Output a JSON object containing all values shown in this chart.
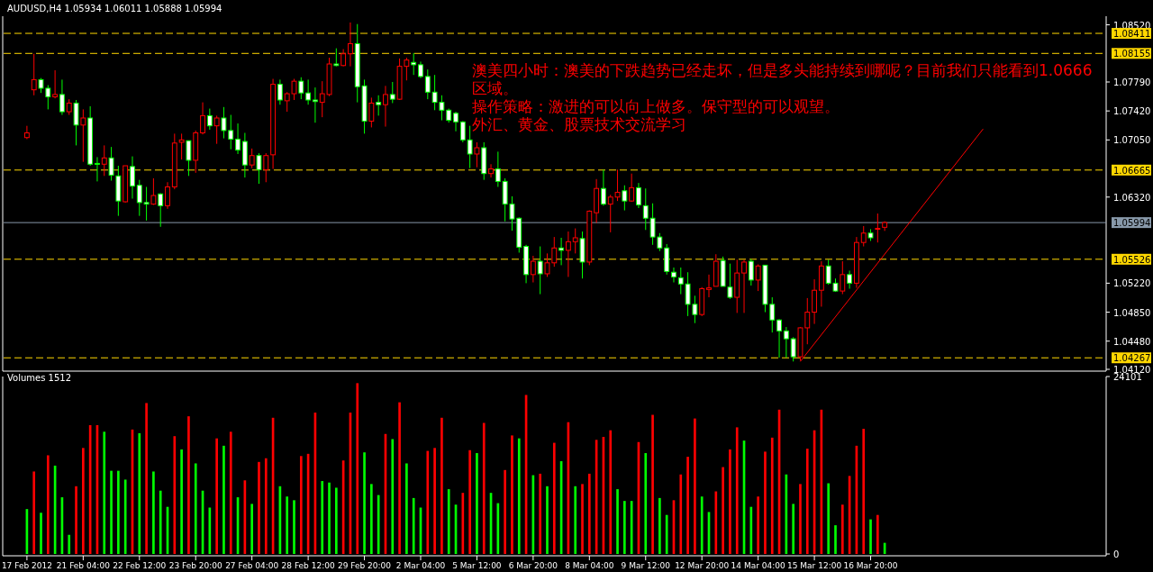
{
  "chart_data": [
    {
      "type": "candlestick",
      "title": "AUDUSD,H4 1.05934 1.06011 1.05888 1.05994",
      "tick_labels": "y",
      "categories": [
        null,
        null,
        null,
        null,
        null,
        null,
        null,
        null,
        null,
        null,
        null,
        null,
        null,
        null,
        null,
        null,
        null,
        null,
        null,
        null,
        null,
        null,
        null,
        null,
        null,
        null,
        null,
        null,
        null,
        null,
        null,
        null,
        null,
        null,
        null,
        null,
        null,
        null,
        null,
        null,
        null,
        null,
        null,
        null,
        null,
        null,
        null,
        null,
        null,
        null,
        null,
        null,
        null,
        null,
        null,
        null,
        null,
        null,
        null,
        null,
        null,
        null,
        null,
        null,
        null,
        null,
        null,
        null,
        null,
        null,
        null,
        null,
        null,
        null,
        null,
        null,
        null,
        null,
        null,
        null,
        null,
        null,
        null,
        null,
        null,
        null,
        null,
        null,
        null,
        null,
        null,
        null,
        null,
        null,
        null,
        null,
        null,
        null,
        null,
        null,
        null,
        null,
        null,
        null,
        null,
        null,
        null,
        null,
        null,
        null,
        null,
        null,
        null,
        null,
        null,
        null,
        null,
        null,
        null,
        null,
        null,
        null,
        null,
        null,
        null,
        null,
        null,
        null,
        null,
        null,
        null,
        null,
        null,
        null,
        null,
        null,
        null,
        null,
        null,
        null,
        null,
        null,
        null,
        null,
        null,
        null,
        null,
        null,
        null,
        null,
        null,
        null,
        null,
        null
      ],
      "ohlc": [
        [
          1.0708,
          1.0723,
          1.0706,
          1.0714
        ],
        [
          1.0769,
          1.0815,
          1.0762,
          1.0782
        ],
        [
          1.0782,
          1.0784,
          1.0765,
          1.0771
        ],
        [
          1.0771,
          1.0775,
          1.0744,
          1.076
        ],
        [
          1.076,
          1.0794,
          1.0758,
          1.0763
        ],
        [
          1.0763,
          1.0782,
          1.0737,
          1.0741
        ],
        [
          1.0741,
          1.0757,
          1.0737,
          1.0752
        ],
        [
          1.0752,
          1.0756,
          1.0698,
          1.0724
        ],
        [
          1.0724,
          1.0744,
          1.0677,
          1.0733
        ],
        [
          1.0733,
          1.0748,
          1.0672,
          1.0674
        ],
        [
          1.0675,
          1.0683,
          1.0652,
          1.0674
        ],
        [
          1.0674,
          1.0698,
          1.0659,
          1.0682
        ],
        [
          1.0682,
          1.0696,
          1.0653,
          1.066
        ],
        [
          1.0659,
          1.0672,
          1.0608,
          1.0627
        ],
        [
          1.0626,
          1.0672,
          1.0625,
          1.0672
        ],
        [
          1.0671,
          1.0684,
          1.063,
          1.0646
        ],
        [
          1.0647,
          1.0654,
          1.0608,
          1.0625
        ],
        [
          1.0625,
          1.0645,
          1.0602,
          1.0623
        ],
        [
          1.0623,
          1.0656,
          1.0622,
          1.0634
        ],
        [
          1.0636,
          1.0637,
          1.0594,
          1.0621
        ],
        [
          1.0621,
          1.0651,
          1.0617,
          1.0645
        ],
        [
          1.0645,
          1.0713,
          1.0642,
          1.0701
        ],
        [
          1.0702,
          1.0713,
          1.068,
          1.0705
        ],
        [
          1.0704,
          1.0704,
          1.0659,
          1.0679
        ],
        [
          1.0679,
          1.0717,
          1.0663,
          1.0714
        ],
        [
          1.0714,
          1.0753,
          1.0712,
          1.0736
        ],
        [
          1.0736,
          1.0745,
          1.0718,
          1.0723
        ],
        [
          1.0723,
          1.0736,
          1.07,
          1.0733
        ],
        [
          1.0733,
          1.0747,
          1.0707,
          1.0717
        ],
        [
          1.0717,
          1.0737,
          1.0693,
          1.0706
        ],
        [
          1.0706,
          1.0726,
          1.0687,
          1.0692
        ],
        [
          1.0703,
          1.0714,
          1.0657,
          1.0673
        ],
        [
          1.0673,
          1.0694,
          1.0669,
          1.0685
        ],
        [
          1.0685,
          1.0688,
          1.0649,
          1.0667
        ],
        [
          1.0667,
          1.0688,
          1.0651,
          1.0685
        ],
        [
          1.0686,
          1.0783,
          1.0668,
          1.0776
        ],
        [
          1.0776,
          1.0782,
          1.075,
          1.0756
        ],
        [
          1.0755,
          1.0766,
          1.0741,
          1.0764
        ],
        [
          1.0764,
          1.0783,
          1.0756,
          1.078
        ],
        [
          1.078,
          1.0785,
          1.0757,
          1.0765
        ],
        [
          1.0765,
          1.0782,
          1.075,
          1.0756
        ],
        [
          1.0756,
          1.0772,
          1.0727,
          1.0754
        ],
        [
          1.0753,
          1.078,
          1.0734,
          1.0764
        ],
        [
          1.0763,
          1.081,
          1.0761,
          1.0802
        ],
        [
          1.0802,
          1.0822,
          1.0799,
          1.08
        ],
        [
          1.08,
          1.0821,
          1.0799,
          1.0815
        ],
        [
          1.0815,
          1.0855,
          1.0799,
          1.0828
        ],
        [
          1.0828,
          1.0853,
          1.0753,
          1.0773
        ],
        [
          1.0774,
          1.0782,
          1.0713,
          1.0729
        ],
        [
          1.0729,
          1.0759,
          1.0721,
          1.0752
        ],
        [
          1.0753,
          1.0762,
          1.0736,
          1.075
        ],
        [
          1.075,
          1.0774,
          1.0722,
          1.0763
        ],
        [
          1.0763,
          1.0779,
          1.0752,
          1.0757
        ],
        [
          1.0757,
          1.0809,
          1.0756,
          1.0799
        ],
        [
          1.0799,
          1.081,
          1.0781,
          1.0807
        ],
        [
          1.0804,
          1.0816,
          1.0788,
          1.0801
        ],
        [
          1.0801,
          1.0805,
          1.0784,
          1.0786
        ],
        [
          1.0786,
          1.0795,
          1.0757,
          1.0766
        ],
        [
          1.0766,
          1.0788,
          1.0743,
          1.0753
        ],
        [
          1.0753,
          1.0762,
          1.073,
          1.0743
        ],
        [
          1.0743,
          1.0745,
          1.0727,
          1.073
        ],
        [
          1.0739,
          1.0741,
          1.0716,
          1.0728
        ],
        [
          1.0728,
          1.0729,
          1.0702,
          1.0705
        ],
        [
          1.0705,
          1.0723,
          1.0669,
          1.0687
        ],
        [
          1.0687,
          1.0702,
          1.067,
          1.0695
        ],
        [
          1.0695,
          1.0702,
          1.0654,
          1.0662
        ],
        [
          1.0662,
          1.0674,
          1.0657,
          1.0668
        ],
        [
          1.0668,
          1.069,
          1.0645,
          1.0652
        ],
        [
          1.0652,
          1.0656,
          1.0601,
          1.0623
        ],
        [
          1.0623,
          1.0633,
          1.0589,
          1.0604
        ],
        [
          1.0605,
          1.0606,
          1.0561,
          1.0568
        ],
        [
          1.0569,
          1.0571,
          1.0522,
          1.0533
        ],
        [
          1.0533,
          1.0557,
          1.0523,
          1.055
        ],
        [
          1.055,
          1.0569,
          1.0508,
          1.0534
        ],
        [
          1.0534,
          1.056,
          1.053,
          1.0548
        ],
        [
          1.0548,
          1.0581,
          1.0543,
          1.0567
        ],
        [
          1.0567,
          1.058,
          1.0545,
          1.0564
        ],
        [
          1.0564,
          1.0588,
          1.053,
          1.0575
        ],
        [
          1.0575,
          1.0592,
          1.056,
          1.058
        ],
        [
          1.0579,
          1.0588,
          1.0528,
          1.0549
        ],
        [
          1.0549,
          1.0615,
          1.0545,
          1.0614
        ],
        [
          1.0612,
          1.0655,
          1.0599,
          1.0643
        ],
        [
          1.0643,
          1.0667,
          1.0621,
          1.0623
        ],
        [
          1.0623,
          1.0635,
          1.0587,
          1.0632
        ],
        [
          1.0632,
          1.0667,
          1.0627,
          1.0638
        ],
        [
          1.064,
          1.0647,
          1.0615,
          1.0627
        ],
        [
          1.0627,
          1.0662,
          1.0626,
          1.0644
        ],
        [
          1.0644,
          1.065,
          1.0618,
          1.0622
        ],
        [
          1.0621,
          1.0643,
          1.059,
          1.0605
        ],
        [
          1.0605,
          1.0624,
          1.0571,
          1.0581
        ],
        [
          1.0581,
          1.0586,
          1.0563,
          1.0567
        ],
        [
          1.0567,
          1.0572,
          1.0533,
          1.0537
        ],
        [
          1.0536,
          1.0542,
          1.0523,
          1.053
        ],
        [
          1.0529,
          1.0542,
          1.0508,
          1.0521
        ],
        [
          1.0521,
          1.0536,
          1.048,
          1.0495
        ],
        [
          1.0495,
          1.0506,
          1.0471,
          1.0482
        ],
        [
          1.0482,
          1.0517,
          1.048,
          1.0515
        ],
        [
          1.0514,
          1.0533,
          1.0504,
          1.0516
        ],
        [
          1.0518,
          1.0559,
          1.0518,
          1.055
        ],
        [
          1.0551,
          1.0556,
          1.0518,
          1.0518
        ],
        [
          1.0517,
          1.0547,
          1.0502,
          1.0504
        ],
        [
          1.0504,
          1.0552,
          1.0484,
          1.0535
        ],
        [
          1.0535,
          1.0552,
          1.0484,
          1.0549
        ],
        [
          1.055,
          1.0553,
          1.0519,
          1.0526
        ],
        [
          1.0526,
          1.0546,
          1.0512,
          1.0544
        ],
        [
          1.0545,
          1.0545,
          1.0485,
          1.0495
        ],
        [
          1.0495,
          1.0504,
          1.0459,
          1.0475
        ],
        [
          1.0475,
          1.0476,
          1.0427,
          1.0461
        ],
        [
          1.0461,
          1.0466,
          1.0427,
          1.0451
        ],
        [
          1.0451,
          1.0453,
          1.0422,
          1.0428
        ],
        [
          1.0428,
          1.0466,
          1.0423,
          1.0465
        ],
        [
          1.0465,
          1.0503,
          1.0444,
          1.0485
        ],
        [
          1.0485,
          1.0527,
          1.047,
          1.0513
        ],
        [
          1.0513,
          1.055,
          1.0492,
          1.0544
        ],
        [
          1.0544,
          1.0552,
          1.052,
          1.0522
        ],
        [
          1.0522,
          1.0528,
          1.0511,
          1.0512
        ],
        [
          1.0512,
          1.055,
          1.0508,
          1.0533
        ],
        [
          1.0533,
          1.0538,
          1.0515,
          1.0522
        ],
        [
          1.0522,
          1.0581,
          1.0516,
          1.0574
        ],
        [
          1.0574,
          1.0595,
          1.0569,
          1.0586
        ],
        [
          1.0586,
          1.0591,
          1.0576,
          1.058
        ],
        [
          1.0591,
          1.0611,
          1.0574,
          1.0592
        ],
        [
          1.05934,
          1.06011,
          1.05888,
          1.05994
        ],
        null,
        null,
        null,
        null,
        null,
        null,
        null,
        null,
        null,
        null,
        null,
        null,
        null,
        null,
        null,
        null,
        null,
        null,
        null,
        null,
        null,
        null,
        null,
        null,
        null,
        null,
        null,
        null,
        null,
        null,
        null
      ],
      "colors": [
        "#ff0000",
        "#ff0000",
        "#00ff00",
        "#00ff00",
        "#ff0000",
        "#00ff00",
        "#ff0000",
        "#00ff00",
        "#ff0000",
        "#00ff00",
        "#00ff00",
        "#ff0000",
        "#00ff00",
        "#00ff00",
        "#ff0000",
        "#00ff00",
        "#00ff00",
        "#00ff00",
        "#ff0000",
        "#00ff00",
        "#ff0000",
        "#ff0000",
        "#ff0000",
        "#00ff00",
        "#ff0000",
        "#ff0000",
        "#00ff00",
        "#ff0000",
        "#00ff00",
        "#00ff00",
        "#00ff00",
        "#00ff00",
        "#ff0000",
        "#00ff00",
        "#ff0000",
        "#ff0000",
        "#00ff00",
        "#ff0000",
        "#ff0000",
        "#00ff00",
        "#00ff00",
        "#00ff00",
        "#ff0000",
        "#ff0000",
        "#00ff00",
        "#ff0000",
        "#ff0000",
        "#00ff00",
        "#00ff00",
        "#ff0000",
        "#00ff00",
        "#ff0000",
        "#00ff00",
        "#ff0000",
        "#ff0000",
        "#00ff00",
        "#00ff00",
        "#00ff00",
        "#00ff00",
        "#00ff00",
        "#00ff00",
        "#00ff00",
        "#00ff00",
        "#00ff00",
        "#ff0000",
        "#00ff00",
        "#ff0000",
        "#00ff00",
        "#00ff00",
        "#00ff00",
        "#00ff00",
        "#00ff00",
        "#ff0000",
        "#00ff00",
        "#ff0000",
        "#ff0000",
        "#00ff00",
        "#ff0000",
        "#ff0000",
        "#00ff00",
        "#ff0000",
        "#ff0000",
        "#00ff00",
        "#ff0000",
        "#ff0000",
        "#00ff00",
        "#ff0000",
        "#00ff00",
        "#00ff00",
        "#00ff00",
        "#00ff00",
        "#00ff00",
        "#00ff00",
        "#00ff00",
        "#00ff00",
        "#00ff00",
        "#ff0000",
        "#ff0000",
        "#ff0000",
        "#00ff00",
        "#00ff00",
        "#ff0000",
        "#ff0000",
        "#00ff00",
        "#ff0000",
        "#00ff00",
        "#00ff00",
        "#00ff00",
        "#00ff00",
        "#00ff00",
        "#ff0000",
        "#ff0000",
        "#ff0000",
        "#ff0000",
        "#00ff00",
        "#00ff00",
        "#ff0000",
        "#00ff00",
        "#ff0000",
        "#ff0000",
        "#00ff00",
        "#ff0000",
        "#ff0000",
        null,
        null,
        null,
        null,
        null,
        null,
        null,
        null,
        null,
        null,
        null,
        null,
        null,
        null,
        null,
        null,
        null,
        null,
        null,
        null,
        null,
        null,
        null,
        null,
        null,
        null,
        null,
        null,
        null,
        null,
        null
      ],
      "ylim": [
        1.0412,
        1.0863
      ],
      "yticks": [
        {
          "value": 1.0852,
          "label": "1.08520"
        },
        {
          "value": 1.0779,
          "label": "1.07790"
        },
        {
          "value": 1.0742,
          "label": "1.07420"
        },
        {
          "value": 1.0705,
          "label": "1.07050"
        },
        {
          "value": 1.0632,
          "label": "1.06320"
        },
        {
          "value": 1.0522,
          "label": "1.05220"
        },
        {
          "value": 1.0485,
          "label": "1.04850"
        },
        {
          "value": 1.0448,
          "label": "1.04480"
        },
        {
          "value": 1.0412,
          "label": "1.04120"
        }
      ],
      "ref_lines": [
        {
          "axis": "y",
          "value": 1.08411,
          "label": "1.08411",
          "color": "#ffd700",
          "line_style": "dashed"
        },
        {
          "axis": "y",
          "value": 1.08155,
          "label": "1.08155",
          "color": "#ffd700",
          "line_style": "dashed"
        },
        {
          "axis": "y",
          "value": 1.06665,
          "label": "1.06665",
          "color": "#ffd700",
          "line_style": "dashed"
        },
        {
          "axis": "y",
          "value": 1.05994,
          "label": "1.05994",
          "color": "#8899aa",
          "line_style": "solid"
        },
        {
          "axis": "y",
          "value": 1.05526,
          "label": "1.05526",
          "color": "#ffd700",
          "line_style": "dashed"
        },
        {
          "axis": "y",
          "value": 1.04267,
          "label": "1.04267",
          "color": "#ffd700",
          "line_style": "dashed"
        }
      ],
      "annotations": [
        "澳美四小时：澳美的下跌趋势已经走坏，但是多头能持续到哪呢？目前我们只能看到1.0666区域。",
        "操作策略：激进的可以向上做多。保守型的可以观望。",
        "外汇、黄金、股票技术交流学习"
      ],
      "series": [
        {
          "type": "line",
          "color": "#ff0000",
          "values": [
            null,
            null,
            null,
            null,
            null,
            null,
            null,
            null,
            null,
            null,
            null,
            null,
            null,
            null,
            null,
            null,
            null,
            null,
            null,
            null,
            null,
            null,
            null,
            null,
            null,
            null,
            null,
            null,
            null,
            null,
            null,
            null,
            null,
            null,
            null,
            null,
            null,
            null,
            null,
            null,
            null,
            null,
            null,
            null,
            null,
            null,
            null,
            null,
            null,
            null,
            null,
            null,
            null,
            null,
            null,
            null,
            null,
            null,
            null,
            null,
            null,
            null,
            null,
            null,
            null,
            null,
            null,
            null,
            null,
            null,
            null,
            null,
            null,
            null,
            null,
            null,
            null,
            null,
            null,
            null,
            null,
            null,
            null,
            null,
            null,
            null,
            null,
            null,
            null,
            null,
            null,
            null,
            null,
            null,
            null,
            null,
            null,
            null,
            null,
            null,
            null,
            null,
            null,
            null,
            null,
            null,
            null,
            null,
            null,
            null,
            1.0422,
            null,
            null,
            null,
            null,
            null,
            null,
            null,
            null,
            null,
            null,
            null,
            null,
            null,
            null,
            null,
            null,
            null,
            null,
            null,
            null,
            null,
            null,
            null,
            null,
            null,
            1.0719,
            null,
            null,
            null,
            null,
            null,
            null,
            null,
            null,
            null,
            null,
            null,
            null,
            null,
            null,
            null,
            null,
            null
          ]
        }
      ]
    },
    {
      "type": "bar",
      "title": "Volumes 1512",
      "categories": [
        "17 Feb 2012",
        null,
        null,
        null,
        null,
        null,
        null,
        null,
        "21 Feb 04:00",
        null,
        null,
        null,
        null,
        null,
        null,
        null,
        "22 Feb 12:00",
        null,
        null,
        null,
        null,
        null,
        null,
        null,
        "23 Feb 20:00",
        null,
        null,
        null,
        null,
        null,
        null,
        null,
        "27 Feb 04:00",
        null,
        null,
        null,
        null,
        null,
        null,
        null,
        "28 Feb 12:00",
        null,
        null,
        null,
        null,
        null,
        null,
        null,
        "29 Feb 20:00",
        null,
        null,
        null,
        null,
        null,
        null,
        null,
        "2 Mar 04:00",
        null,
        null,
        null,
        null,
        null,
        null,
        null,
        "5 Mar 12:00",
        null,
        null,
        null,
        null,
        null,
        null,
        null,
        "6 Mar 20:00",
        null,
        null,
        null,
        null,
        null,
        null,
        null,
        "8 Mar 04:00",
        null,
        null,
        null,
        null,
        null,
        null,
        null,
        "9 Mar 12:00",
        null,
        null,
        null,
        null,
        null,
        null,
        null,
        "12 Mar 20:00",
        null,
        null,
        null,
        null,
        null,
        null,
        null,
        "14 Mar 04:00",
        null,
        null,
        null,
        null,
        null,
        null,
        null,
        "15 Mar 12:00",
        null,
        null,
        null,
        null,
        null,
        null,
        null,
        "16 Mar 20:00",
        null,
        null,
        null,
        null,
        null,
        null,
        null,
        null,
        null,
        null,
        null,
        null,
        null,
        null,
        null,
        null,
        null,
        null,
        null,
        null,
        null,
        null,
        null,
        null,
        null,
        null,
        null,
        null,
        null,
        null,
        null,
        null,
        null
      ],
      "values": [
        6100,
        11200,
        5600,
        13400,
        12000,
        7700,
        2600,
        9200,
        14400,
        17500,
        17500,
        16600,
        11300,
        11300,
        10100,
        16900,
        16400,
        20500,
        11200,
        8600,
        6400,
        16000,
        14200,
        18700,
        12300,
        8600,
        6300,
        15700,
        14700,
        16600,
        7700,
        10000,
        6800,
        12500,
        13000,
        18500,
        9200,
        7800,
        7300,
        13300,
        13600,
        19200,
        9900,
        9700,
        9000,
        12700,
        19200,
        23200,
        13800,
        9500,
        8000,
        16300,
        15600,
        20600,
        12300,
        7600,
        6300,
        14000,
        14400,
        18500,
        8800,
        6700,
        8300,
        14100,
        13700,
        17800,
        8300,
        6900,
        11400,
        16100,
        15700,
        21600,
        10700,
        10900,
        9200,
        15100,
        12600,
        17900,
        9200,
        9500,
        10900,
        15500,
        15900,
        16800,
        8800,
        7200,
        7200,
        15200,
        13700,
        18900,
        7600,
        5300,
        7300,
        10800,
        13200,
        18400,
        7800,
        5700,
        8500,
        11800,
        14200,
        17200,
        15400,
        6400,
        7800,
        13900,
        15800,
        19600,
        10800,
        6800,
        9500,
        14300,
        16800,
        19600,
        9600,
        3900,
        6700,
        10600,
        14700,
        17000,
        4700,
        5300,
        1512,
        null,
        null,
        null,
        null,
        null,
        null,
        null,
        null,
        null,
        null,
        null,
        null,
        null,
        null,
        null,
        null,
        null,
        null,
        null,
        null,
        null,
        null,
        null,
        null,
        null,
        null,
        null,
        null,
        null,
        null,
        null
      ],
      "colors": [
        "#00ff00",
        "#ff0000",
        "#00ff00",
        "#ff0000",
        "#00ff00",
        "#00ff00",
        "#00ff00",
        "#ff0000",
        "#ff0000",
        "#ff0000",
        "#ff0000",
        "#00ff00",
        "#00ff00",
        "#00ff00",
        "#00ff00",
        "#ff0000",
        "#00ff00",
        "#ff0000",
        "#00ff00",
        "#00ff00",
        "#00ff00",
        "#ff0000",
        "#00ff00",
        "#ff0000",
        "#00ff00",
        "#00ff00",
        "#00ff00",
        "#ff0000",
        "#00ff00",
        "#ff0000",
        "#00ff00",
        "#ff0000",
        "#00ff00",
        "#ff0000",
        "#ff0000",
        "#ff0000",
        "#00ff00",
        "#00ff00",
        "#00ff00",
        "#ff0000",
        "#ff0000",
        "#ff0000",
        "#00ff00",
        "#00ff00",
        "#00ff00",
        "#ff0000",
        "#ff0000",
        "#ff0000",
        "#00ff00",
        "#00ff00",
        "#00ff00",
        "#ff0000",
        "#00ff00",
        "#ff0000",
        "#00ff00",
        "#00ff00",
        "#00ff00",
        "#ff0000",
        "#ff0000",
        "#ff0000",
        "#00ff00",
        "#00ff00",
        "#ff0000",
        "#ff0000",
        "#00ff00",
        "#ff0000",
        "#00ff00",
        "#00ff00",
        "#ff0000",
        "#ff0000",
        "#00ff00",
        "#ff0000",
        "#00ff00",
        "#ff0000",
        "#00ff00",
        "#ff0000",
        "#00ff00",
        "#ff0000",
        "#00ff00",
        "#ff0000",
        "#ff0000",
        "#ff0000",
        "#ff0000",
        "#ff0000",
        "#00ff00",
        "#00ff00",
        "#00ff00",
        "#ff0000",
        "#00ff00",
        "#ff0000",
        "#00ff00",
        "#00ff00",
        "#ff0000",
        "#ff0000",
        "#ff0000",
        "#ff0000",
        "#00ff00",
        "#00ff00",
        "#ff0000",
        "#ff0000",
        "#ff0000",
        "#ff0000",
        "#00ff00",
        "#00ff00",
        "#ff0000",
        "#ff0000",
        "#ff0000",
        "#ff0000",
        "#00ff00",
        "#00ff00",
        "#ff0000",
        "#ff0000",
        "#ff0000",
        "#ff0000",
        "#00ff00",
        "#00ff00",
        "#ff0000",
        "#ff0000",
        "#ff0000",
        "#ff0000",
        "#00ff00",
        "#ff0000",
        "#00ff00",
        null,
        null,
        null,
        null,
        null,
        null,
        null,
        null,
        null,
        null,
        null,
        null,
        null,
        null,
        null,
        null,
        null,
        null,
        null,
        null,
        null,
        null,
        null,
        null,
        null,
        null,
        null,
        null,
        null,
        null,
        null
      ],
      "ylim": [
        0,
        24101
      ],
      "yticks": [
        24101,
        0
      ]
    }
  ]
}
